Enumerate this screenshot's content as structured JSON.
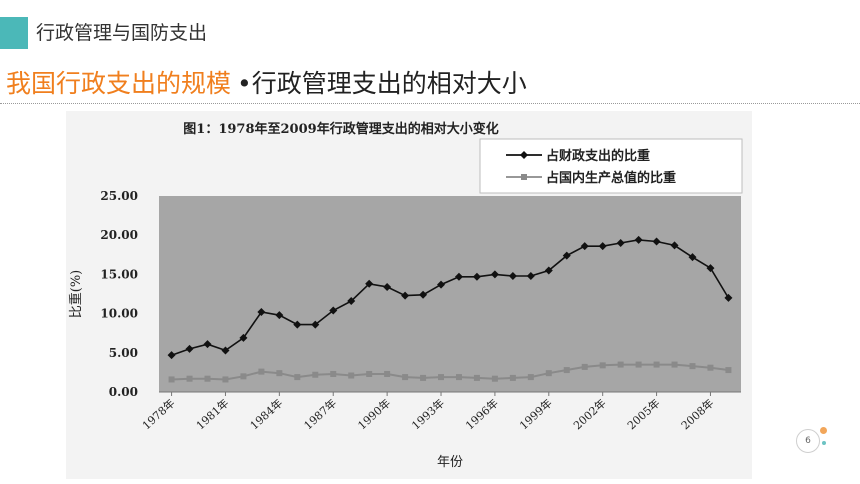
{
  "header": {
    "section_title": "行政管理与国防支出",
    "accent_color": "#4bb8b8"
  },
  "heading": {
    "main": "我国行政支出的规模",
    "bullet": "•",
    "sub": "行政管理支出的相对大小",
    "main_color": "#f07f1e"
  },
  "page_number": "6",
  "chart_data": {
    "type": "line",
    "title": "图1：1978年至2009年行政管理支出的相对大小变化",
    "xlabel": "年份",
    "ylabel": "比重(%)",
    "ylim": [
      0,
      25
    ],
    "yticks": [
      "25.00",
      "20.00",
      "15.00",
      "10.00",
      "5.00",
      "0.00"
    ],
    "ytick_values": [
      25,
      20,
      15,
      10,
      5,
      0
    ],
    "xtick_labels": [
      "1978年",
      "1981年",
      "1984年",
      "1987年",
      "1990年",
      "1993年",
      "1996年",
      "1999年",
      "2002年",
      "2005年",
      "2008年"
    ],
    "xtick_years": [
      1978,
      1981,
      1984,
      1987,
      1990,
      1993,
      1996,
      1999,
      2002,
      2005,
      2008
    ],
    "x": [
      1978,
      1979,
      1980,
      1981,
      1982,
      1983,
      1984,
      1985,
      1986,
      1987,
      1988,
      1989,
      1990,
      1991,
      1992,
      1993,
      1994,
      1995,
      1996,
      1997,
      1998,
      1999,
      2000,
      2001,
      2002,
      2003,
      2004,
      2005,
      2006,
      2007,
      2008,
      2009
    ],
    "series": [
      {
        "name": "占财政支出的比重",
        "color": "#111111",
        "marker": "diamond",
        "values": [
          4.7,
          5.5,
          6.1,
          5.3,
          6.9,
          10.2,
          9.8,
          8.6,
          8.6,
          10.4,
          11.6,
          13.8,
          13.4,
          12.3,
          12.4,
          13.7,
          14.7,
          14.7,
          15.0,
          14.8,
          14.8,
          15.5,
          17.4,
          18.6,
          18.6,
          19.0,
          19.4,
          19.2,
          18.7,
          17.2,
          15.8,
          12.0
        ]
      },
      {
        "name": "占国内生产总值的比重",
        "color": "#8a8a8a",
        "marker": "square",
        "values": [
          1.6,
          1.7,
          1.7,
          1.6,
          2.0,
          2.6,
          2.4,
          1.9,
          2.2,
          2.3,
          2.1,
          2.3,
          2.3,
          1.9,
          1.8,
          1.9,
          1.9,
          1.8,
          1.7,
          1.8,
          1.9,
          2.4,
          2.8,
          3.2,
          3.4,
          3.5,
          3.5,
          3.5,
          3.5,
          3.3,
          3.1,
          2.8
        ]
      }
    ],
    "grid": false,
    "legend": "top-right",
    "plot_background": "#a6a6a6"
  }
}
